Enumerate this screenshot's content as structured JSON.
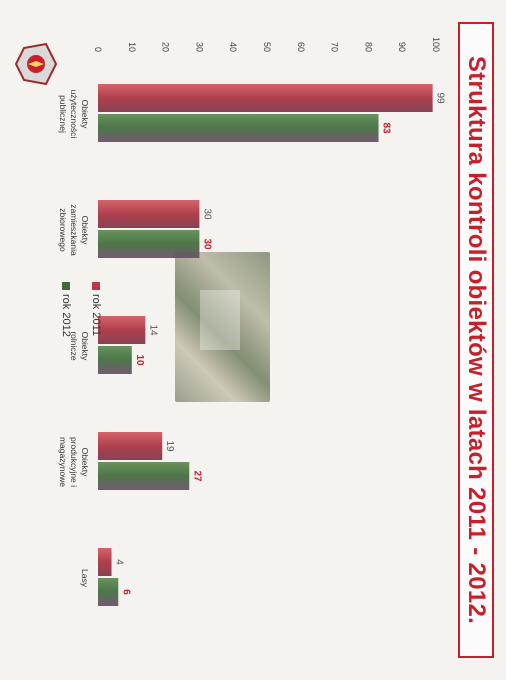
{
  "title": "Struktura kontroli obiektów w latach 2011 - 2012.",
  "colors": {
    "title": "#c8202a",
    "series_2011": "#b83a48",
    "series_2012": "#3f6b3a"
  },
  "chart_data": {
    "type": "bar",
    "categories": [
      [
        "Obiekty",
        "użyteczności",
        "publicznej"
      ],
      [
        "Obiekty",
        "zamieszkania",
        "zbiorowego"
      ],
      [
        "Obiekty",
        "rolnicze"
      ],
      [
        "Obiekty",
        "produkcyjne i",
        "magazynowe"
      ],
      [
        "Lasy"
      ]
    ],
    "series": [
      {
        "name": "rok 2011",
        "values": [
          99,
          30,
          14,
          19,
          4
        ]
      },
      {
        "name": "rok 2012",
        "values": [
          83,
          30,
          10,
          27,
          6
        ]
      }
    ],
    "ylim": [
      0,
      100
    ],
    "yticks": [
      0,
      10,
      20,
      30,
      40,
      50,
      60,
      70,
      80,
      90,
      100
    ],
    "grid": false,
    "legend": "bottom-right"
  },
  "legend": {
    "item1": "rok 2011",
    "item2": "rok 2012"
  },
  "logo_icon": "fire-service-emblem-icon"
}
